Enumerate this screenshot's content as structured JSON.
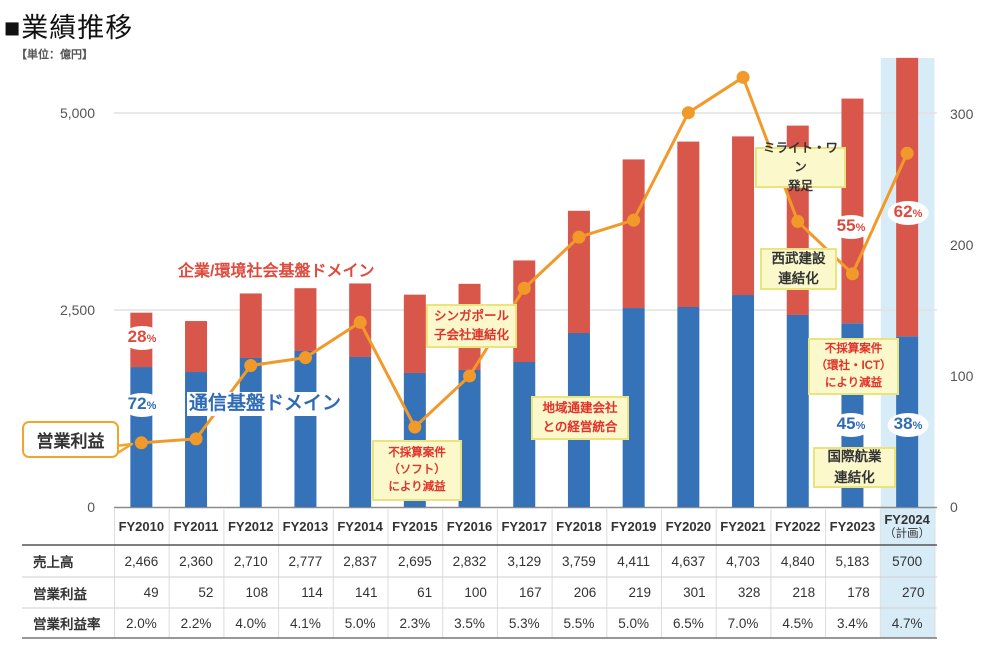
{
  "header": {
    "title": "■業績推移",
    "unit": "【単位：億円】"
  },
  "legend": {
    "corporate_domain": "企業/環境社会基盤ドメイン",
    "telecom_domain": "通信基盤ドメイン",
    "operating_profit_callout": "営業利益"
  },
  "share_labels": {
    "unit": "%",
    "fy2010_corporate": "28",
    "fy2010_telecom": "72",
    "fy2023_corporate": "55",
    "fy2023_telecom": "45",
    "fy2024_corporate": "62",
    "fy2024_telecom": "38"
  },
  "annotations": {
    "singapore": [
      "シンガポール",
      "子会社連結化"
    ],
    "soft": [
      "不採算案件",
      "（ソフト）",
      "により減益"
    ],
    "chiiki": [
      "地域通建会社",
      "との経営統合"
    ],
    "mirait": [
      "ミライト・ワン",
      "発足"
    ],
    "seibu": [
      "西武建設",
      "連結化"
    ],
    "ict": [
      "不採算案件",
      "（環社・ICT）",
      "により減益"
    ],
    "kokusai": [
      "国際航業",
      "連結化"
    ]
  },
  "table": {
    "columns": [
      "FY2010",
      "FY2011",
      "FY2012",
      "FY2013",
      "FY2014",
      "FY2015",
      "FY2016",
      "FY2017",
      "FY2018",
      "FY2019",
      "FY2020",
      "FY2021",
      "FY2022",
      "FY2023",
      "FY2024"
    ],
    "column_subtitles": [
      "",
      "",
      "",
      "",
      "",
      "",
      "",
      "",
      "",
      "",
      "",
      "",
      "",
      "",
      "（計画）"
    ],
    "rows": [
      {
        "label": "売上高",
        "values": [
          "2,466",
          "2,360",
          "2,710",
          "2,777",
          "2,837",
          "2,695",
          "2,832",
          "3,129",
          "3,759",
          "4,411",
          "4,637",
          "4,703",
          "4,840",
          "5,183",
          "5700"
        ]
      },
      {
        "label": "営業利益",
        "values": [
          "49",
          "52",
          "108",
          "114",
          "141",
          "61",
          "100",
          "167",
          "206",
          "219",
          "301",
          "328",
          "218",
          "178",
          "270"
        ]
      },
      {
        "label": "営業利益率",
        "values": [
          "2.0%",
          "2.2%",
          "4.0%",
          "4.1%",
          "5.0%",
          "2.3%",
          "3.5%",
          "5.3%",
          "5.5%",
          "5.0%",
          "6.5%",
          "7.0%",
          "4.5%",
          "3.4%",
          "4.7%"
        ]
      }
    ],
    "highlighted_column": "FY2024"
  },
  "colors": {
    "telecom": "#3572b8",
    "corporate": "#d9574a",
    "operating_profit": "#f19a2a",
    "plan_highlight": "#d8ecf8",
    "annotation_bg": "#fbf8cc"
  },
  "chart_data": {
    "type": "bar",
    "stacked": true,
    "title": "業績推移",
    "unit_label": "【単位：億円】",
    "categories": [
      "FY2010",
      "FY2011",
      "FY2012",
      "FY2013",
      "FY2014",
      "FY2015",
      "FY2016",
      "FY2017",
      "FY2018",
      "FY2019",
      "FY2020",
      "FY2021",
      "FY2022",
      "FY2023",
      "FY2024"
    ],
    "series": [
      {
        "name": "通信基盤ドメイン",
        "type": "bar",
        "axis": "left",
        "values": [
          1776,
          1713,
          1891,
          1980,
          1904,
          1701,
          1739,
          1840,
          2208,
          2525,
          2538,
          2690,
          2437,
          2332,
          2166
        ]
      },
      {
        "name": "企業/環境社会基盤ドメイン",
        "type": "bar",
        "axis": "left",
        "values": [
          690,
          647,
          819,
          797,
          933,
          994,
          1093,
          1289,
          1551,
          1886,
          2099,
          2013,
          2403,
          2851,
          3534
        ]
      },
      {
        "name": "営業利益",
        "type": "line",
        "axis": "right",
        "values": [
          49,
          52,
          108,
          114,
          141,
          61,
          100,
          167,
          206,
          219,
          301,
          328,
          218,
          178,
          270
        ]
      }
    ],
    "totals": [
      2466,
      2360,
      2710,
      2777,
      2837,
      2695,
      2832,
      3129,
      3759,
      4411,
      4637,
      4703,
      4840,
      5183,
      5700
    ],
    "y_left": {
      "range": [
        0,
        5700
      ],
      "ticks": [
        0,
        2500,
        5000
      ],
      "tick_labels": [
        "0",
        "2,500",
        "5,000"
      ]
    },
    "y_right": {
      "range": [
        0,
        340
      ],
      "ticks": [
        0,
        100,
        200,
        300
      ],
      "tick_labels": [
        "0",
        "100",
        "200",
        "300"
      ]
    },
    "grid": true,
    "highlight_category": "FY2024",
    "legend": "inline-annotations"
  }
}
